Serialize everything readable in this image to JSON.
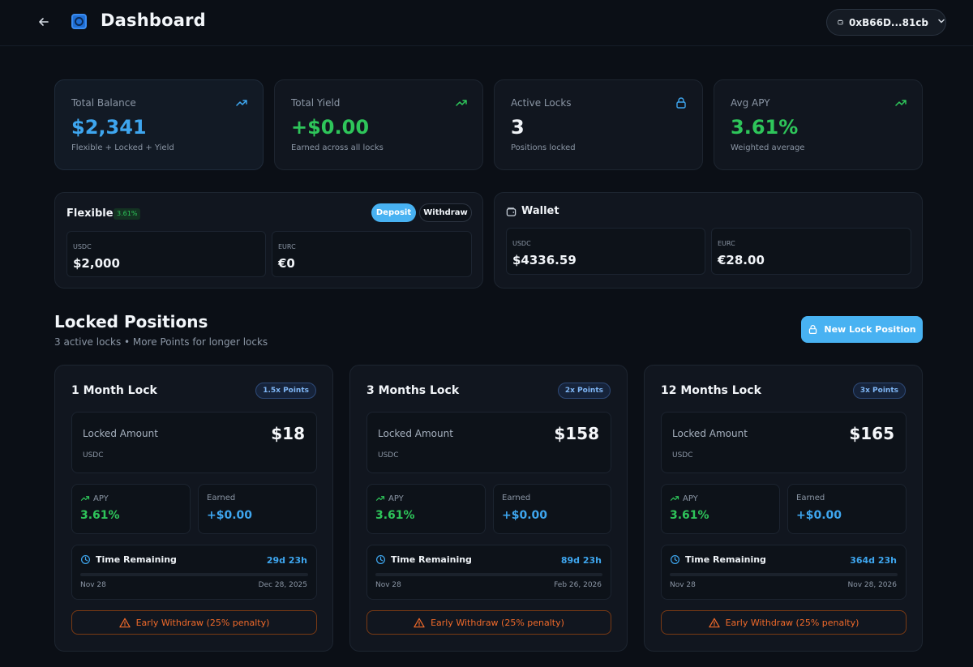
{
  "header": {
    "title": "Dashboard",
    "wallet_address": "0xB66D...81cb"
  },
  "stats": [
    {
      "label": "Total Balance",
      "value": "$2,341",
      "sub": "Flexible + Locked + Yield",
      "icon": "trending-up-icon"
    },
    {
      "label": "Total Yield",
      "value": "+$0.00",
      "sub": "Earned across all locks",
      "icon": "trending-up-icon"
    },
    {
      "label": "Active Locks",
      "value": "3",
      "sub": "Positions locked",
      "icon": "lock-icon"
    },
    {
      "label": "Avg APY",
      "value": "3.61%",
      "sub": "Weighted average",
      "icon": "trending-up-icon"
    }
  ],
  "flexible": {
    "title": "Flexible",
    "apy_badge": "3.61%",
    "deposit_label": "Deposit",
    "withdraw_label": "Withdraw",
    "balances": [
      {
        "label": "USDC",
        "value": "$2,000"
      },
      {
        "label": "EURC",
        "value": "€0"
      }
    ]
  },
  "wallet": {
    "title": "Wallet",
    "balances": [
      {
        "label": "USDC",
        "value": "$4336.59"
      },
      {
        "label": "EURC",
        "value": "€28.00"
      }
    ]
  },
  "locked": {
    "title": "Locked Positions",
    "subtitle": "3 active locks • More Points for longer locks",
    "new_lock_label": "New Lock Position",
    "positions": [
      {
        "title": "1 Month Lock",
        "points": "1.5x Points",
        "locked_amount_label": "Locked Amount",
        "currency": "USDC",
        "amount": "$18",
        "apy_label": "APY",
        "apy": "3.61%",
        "earned_label": "Earned",
        "earned": "+$0.00",
        "time_label": "Time Remaining",
        "time_remaining": "29d 23h",
        "start_date": "Nov 28",
        "end_date": "Dec 28, 2025",
        "progress": 0.0,
        "early_label": "Early Withdraw (25% penalty)"
      },
      {
        "title": "3 Months Lock",
        "points": "2x Points",
        "locked_amount_label": "Locked Amount",
        "currency": "USDC",
        "amount": "$158",
        "apy_label": "APY",
        "apy": "3.61%",
        "earned_label": "Earned",
        "earned": "+$0.00",
        "time_label": "Time Remaining",
        "time_remaining": "89d 23h",
        "start_date": "Nov 28",
        "end_date": "Feb 26, 2026",
        "progress": 0.0,
        "early_label": "Early Withdraw (25% penalty)"
      },
      {
        "title": "12 Months Lock",
        "points": "3x Points",
        "locked_amount_label": "Locked Amount",
        "currency": "USDC",
        "amount": "$165",
        "apy_label": "APY",
        "apy": "3.61%",
        "earned_label": "Earned",
        "earned": "+$0.00",
        "time_label": "Time Remaining",
        "time_remaining": "364d 23h",
        "start_date": "Nov 28",
        "end_date": "Nov 28, 2026",
        "progress": 0.0,
        "early_label": "Early Withdraw (25% penalty)"
      }
    ]
  },
  "colors": {
    "accent_blue": "#3ea6ef",
    "accent_green": "#2ec55a",
    "warning_orange": "#f06a2a",
    "background": "#0b0f16",
    "card": "#11161f"
  }
}
